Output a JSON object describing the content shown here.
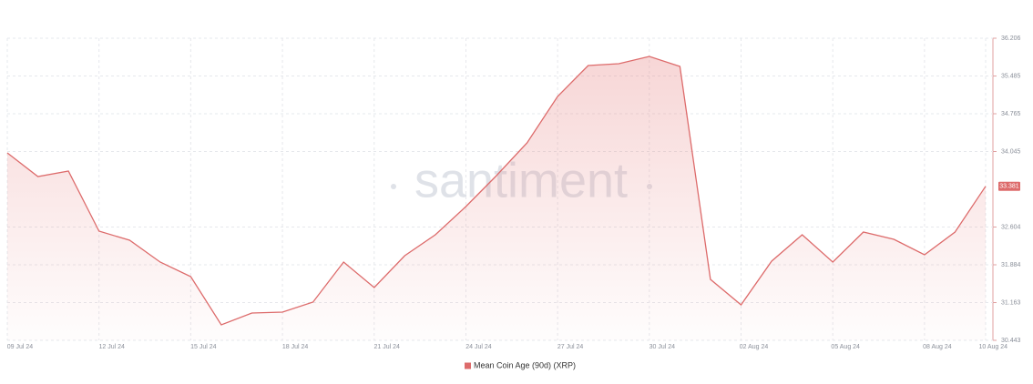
{
  "chart_data": {
    "type": "line",
    "watermark": "santiment",
    "categories": [
      "09 Jul 24",
      null,
      null,
      "12 Jul 24",
      null,
      null,
      "15 Jul 24",
      null,
      null,
      "18 Jul 24",
      null,
      null,
      "21 Jul 24",
      null,
      null,
      "24 Jul 24",
      null,
      null,
      "27 Jul 24",
      null,
      null,
      "30 Jul 24",
      null,
      null,
      "02 Aug 24",
      null,
      null,
      "05 Aug 24",
      null,
      null,
      "08 Aug 24",
      null,
      "10 Aug 24"
    ],
    "series": [
      {
        "name": "Mean Coin Age (90d) (XRP)",
        "color": "#dd6b6b",
        "values": [
          34.019,
          33.567,
          33.672,
          32.526,
          32.352,
          31.936,
          31.658,
          30.738,
          30.964,
          30.981,
          31.172,
          31.936,
          31.45,
          32.057,
          32.457,
          32.995,
          33.585,
          34.21,
          35.095,
          35.685,
          35.72,
          35.859,
          35.668,
          31.606,
          31.12,
          31.953,
          32.457,
          31.936,
          32.509,
          32.37,
          32.075,
          32.509,
          33.381
        ]
      }
    ],
    "ylim": [
      30.443,
      36.206
    ],
    "yticks": [
      30.443,
      31.163,
      31.884,
      32.604,
      34.045,
      34.765,
      35.485,
      36.206
    ],
    "grid": true,
    "legend": "bottom"
  }
}
